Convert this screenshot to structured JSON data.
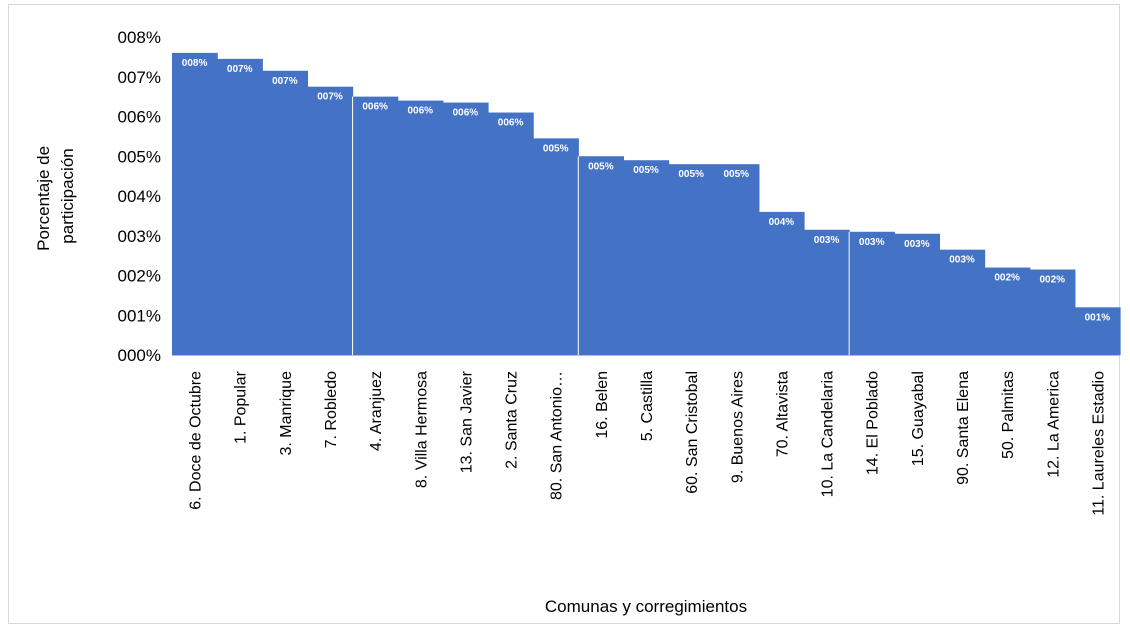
{
  "chart_data": {
    "type": "bar",
    "title": "",
    "xlabel": "Comunas y corregimientos",
    "ylabel_lines": [
      "Porcentaje de",
      "participación"
    ],
    "categories": [
      "6. Doce de Octubre",
      "1. Popular",
      "3. Manrique",
      "7. Robledo",
      "4. Aranjuez",
      "8. Villa Hermosa",
      "13. San Javier",
      "2. Santa Cruz",
      "80. San Antonio…",
      "16. Belen",
      "5. Castilla",
      "60. San Cristobal",
      "9. Buenos Aires",
      "70. Altavista",
      "10. La Candelaria",
      "14. El Poblado",
      "15. Guayabal",
      "90. Santa Elena",
      "50. Palmitas",
      "12. La America",
      "11. Laureles Estadio"
    ],
    "values": [
      7.6,
      7.45,
      7.15,
      6.75,
      6.5,
      6.4,
      6.35,
      6.1,
      5.45,
      5.0,
      4.9,
      4.8,
      4.8,
      3.6,
      3.15,
      3.1,
      3.05,
      2.65,
      2.2,
      2.15,
      1.2
    ],
    "data_labels": [
      "008%",
      "007%",
      "007%",
      "007%",
      "006%",
      "006%",
      "006%",
      "006%",
      "005%",
      "005%",
      "005%",
      "005%",
      "005%",
      "004%",
      "003%",
      "003%",
      "003%",
      "003%",
      "002%",
      "002%",
      "001%"
    ],
    "y_ticks": [
      0,
      1,
      2,
      3,
      4,
      5,
      6,
      7,
      8
    ],
    "y_tick_labels": [
      "000%",
      "001%",
      "002%",
      "003%",
      "004%",
      "005%",
      "006%",
      "007%",
      "008%"
    ],
    "ylim": [
      0,
      8
    ],
    "bar_color": "#4472c4",
    "separator_after_indices": [
      3,
      8,
      14
    ],
    "grid": false,
    "legend": "none"
  }
}
